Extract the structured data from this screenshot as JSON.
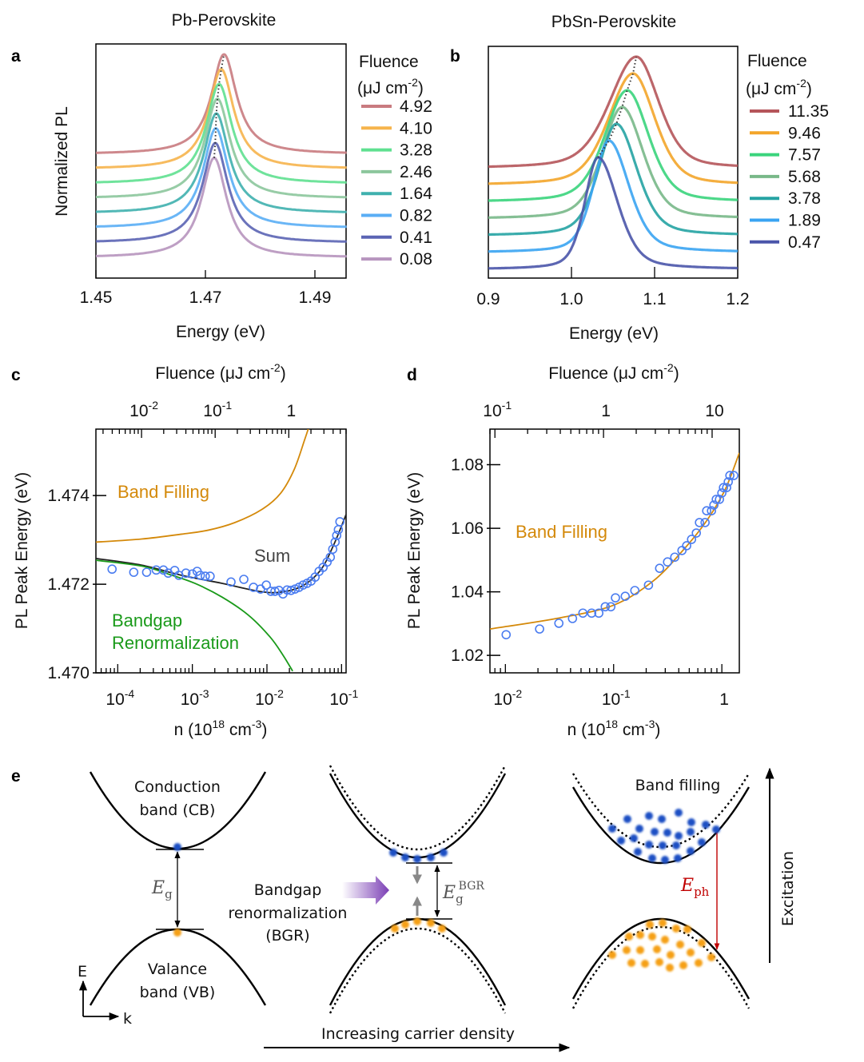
{
  "panel_labels": {
    "a": "a",
    "b": "b",
    "c": "c",
    "d": "d",
    "e": "e"
  },
  "chart_data": [
    {
      "panel": "a",
      "type": "line",
      "title": "Pb-Perovskite",
      "xlabel": "Energy (eV)",
      "ylabel": "Normalized PL",
      "xlim": [
        1.45,
        1.4958
      ],
      "xticks": [
        1.45,
        1.47,
        1.49
      ],
      "xtick_labels": [
        "1.45",
        "1.47",
        "1.49"
      ],
      "legend": {
        "title": "Fluence",
        "unit": "(μJ cm",
        "unit_exp": "-2",
        "unit_close": ")",
        "placement": "right"
      },
      "peak_guide": "dotted",
      "series": [
        {
          "name": "4.92",
          "peak_energy": 1.4734,
          "color": "#c97b80"
        },
        {
          "name": "4.10",
          "peak_energy": 1.4729,
          "color": "#f6b44c"
        },
        {
          "name": "3.28",
          "peak_energy": 1.4725,
          "color": "#5fe090"
        },
        {
          "name": "2.46",
          "peak_energy": 1.4722,
          "color": "#8cc69c"
        },
        {
          "name": "1.64",
          "peak_energy": 1.472,
          "color": "#3fb0ae"
        },
        {
          "name": "0.82",
          "peak_energy": 1.4719,
          "color": "#5aaef5"
        },
        {
          "name": "0.41",
          "peak_energy": 1.4718,
          "color": "#5b64b4"
        },
        {
          "name": "0.08",
          "peak_energy": 1.4716,
          "color": "#b795be"
        }
      ]
    },
    {
      "panel": "b",
      "type": "line",
      "title": "PbSn-Perovskite",
      "xlabel": "Energy (eV)",
      "xlim": [
        0.9,
        1.2
      ],
      "xticks": [
        0.9,
        1.0,
        1.1,
        1.2
      ],
      "xtick_labels": [
        "0.9",
        "1.0",
        "1.1",
        "1.2"
      ],
      "legend": {
        "title": "Fluence",
        "unit": "(μJ cm",
        "unit_exp": "-2",
        "unit_close": ")",
        "placement": "right"
      },
      "peak_guide": "dotted",
      "series": [
        {
          "name": "11.35",
          "peak_energy": 1.078,
          "color": "#b5555a"
        },
        {
          "name": "9.46",
          "peak_energy": 1.074,
          "color": "#f3a52a"
        },
        {
          "name": "7.57",
          "peak_energy": 1.067,
          "color": "#3ad47c"
        },
        {
          "name": "5.68",
          "peak_energy": 1.061,
          "color": "#78b888"
        },
        {
          "name": "3.78",
          "peak_energy": 1.054,
          "color": "#25a3a3"
        },
        {
          "name": "1.89",
          "peak_energy": 1.045,
          "color": "#3aa4f2"
        },
        {
          "name": "0.47",
          "peak_energy": 1.032,
          "color": "#4a55aa"
        }
      ]
    },
    {
      "panel": "c",
      "type": "scatter",
      "xscale": "log",
      "xlabel_parts": [
        "n (10",
        "18",
        " cm",
        "-3",
        ")"
      ],
      "ylabel": "PL Peak Energy (eV)",
      "xlim": [
        5.1e-05,
        0.115
      ],
      "ylim": [
        1.47,
        1.4755
      ],
      "xtick_labels": [
        {
          "base": "10",
          "exp": "-4",
          "value": 0.0001
        },
        {
          "base": "10",
          "exp": "-3",
          "value": 0.001
        },
        {
          "base": "10",
          "exp": "-2",
          "value": 0.01
        },
        {
          "base": "10",
          "exp": "-1",
          "value": 0.1
        }
      ],
      "yticks": [
        1.47,
        1.472,
        1.474
      ],
      "ytick_labels": [
        "1.470",
        "1.472",
        "1.474"
      ],
      "top_axis": {
        "label_parts": [
          "Fluence (μJ cm",
          "-2",
          ")"
        ],
        "scale": "log",
        "xlim": [
          0.0024,
          6.0
        ],
        "tick_labels": [
          {
            "base": "10",
            "exp": "-2",
            "value": 0.01
          },
          {
            "base": "10",
            "exp": "-1",
            "value": 0.1
          },
          {
            "base": "1",
            "exp": "",
            "value": 1
          }
        ]
      },
      "marker_color": "#4a7cf0",
      "points": {
        "n": [
          8.4e-05,
          0.000164,
          0.000244,
          0.000328,
          0.00041,
          0.000475,
          0.00058,
          0.00066,
          0.00082,
          0.001,
          0.00116,
          0.00128,
          0.00149,
          0.00173,
          0.0033,
          0.0049,
          0.0066,
          0.0082,
          0.0098,
          0.0113,
          0.0128,
          0.0145,
          0.0164,
          0.0186,
          0.021,
          0.0238,
          0.0269,
          0.0305,
          0.0345,
          0.039,
          0.0442,
          0.05,
          0.0566,
          0.064,
          0.0707,
          0.0762,
          0.082,
          0.0861,
          0.0906,
          0.095
        ],
        "E": [
          1.47234,
          1.47227,
          1.47227,
          1.47232,
          1.47232,
          1.47225,
          1.47231,
          1.4722,
          1.47225,
          1.47223,
          1.47229,
          1.4722,
          1.47218,
          1.47218,
          1.47205,
          1.47211,
          1.47193,
          1.47189,
          1.47198,
          1.47184,
          1.47184,
          1.47186,
          1.47178,
          1.47187,
          1.47186,
          1.47189,
          1.47193,
          1.47198,
          1.47202,
          1.47207,
          1.47216,
          1.47229,
          1.47238,
          1.4725,
          1.47261,
          1.47279,
          1.47295,
          1.4731,
          1.47323,
          1.47341
        ]
      },
      "series": [
        {
          "label": [
            "Band Filling"
          ],
          "color": "#d4890a",
          "n": [
            5.1e-05,
            0.00021,
            0.00072,
            0.00164,
            0.0037,
            0.0086,
            0.0152,
            0.0232,
            0.032,
            0.0362
          ],
          "E": [
            1.47295,
            1.47302,
            1.47313,
            1.47322,
            1.47339,
            1.47369,
            1.47405,
            1.47459,
            1.47526,
            1.47553
          ]
        },
        {
          "label": [
            "Sum"
          ],
          "color": "#222222",
          "n": [
            5.1e-05,
            0.00021,
            0.00072,
            0.0025,
            0.0078,
            0.0152,
            0.0297,
            0.0525,
            0.08,
            0.116
          ],
          "E": [
            1.47258,
            1.47243,
            1.4722,
            1.47202,
            1.47184,
            1.47182,
            1.47196,
            1.47232,
            1.47292,
            1.47359
          ]
        },
        {
          "label": [
            "Bandgap",
            "Renormalization"
          ],
          "color": "#1a9a1a",
          "n": [
            5.1e-05,
            0.00021,
            0.000475,
            0.00108,
            0.0025,
            0.00566,
            0.011,
            0.0164,
            0.0221
          ],
          "E": [
            1.47254,
            1.47241,
            1.47223,
            1.47202,
            1.47171,
            1.4713,
            1.47081,
            1.4704,
            1.47004
          ]
        }
      ]
    },
    {
      "panel": "d",
      "type": "scatter",
      "xscale": "log",
      "xlabel_parts": [
        "n (10",
        "18",
        " cm",
        "-3",
        ")"
      ],
      "ylabel": "PL Peak Energy (eV)",
      "xlim": [
        0.0072,
        1.45
      ],
      "ylim": [
        1.0145,
        1.0912
      ],
      "xtick_labels": [
        {
          "base": "10",
          "exp": "-2",
          "value": 0.01
        },
        {
          "base": "10",
          "exp": "-1",
          "value": 0.1
        },
        {
          "base": "1",
          "exp": "",
          "value": 1
        }
      ],
      "yticks": [
        1.02,
        1.04,
        1.06,
        1.08
      ],
      "ytick_labels": [
        "1.02",
        "1.04",
        "1.06",
        "1.08"
      ],
      "top_axis": {
        "label_parts": [
          "Fluence (μJ cm",
          "-2",
          ")"
        ],
        "scale": "log",
        "xlim": [
          0.09,
          17.8
        ],
        "tick_labels": [
          {
            "base": "10",
            "exp": "-1",
            "value": 0.1
          },
          {
            "base": "1",
            "exp": "",
            "value": 1
          },
          {
            "base": "10",
            "exp": "",
            "value": 10
          }
        ]
      },
      "marker_color": "#4a7cf0",
      "points": {
        "n": [
          0.01016,
          0.0207,
          0.0312,
          0.0417,
          0.052,
          0.0627,
          0.073,
          0.0837,
          0.0943,
          0.104,
          0.128,
          0.157,
          0.21,
          0.266,
          0.315,
          0.367,
          0.428,
          0.473,
          0.525,
          0.581,
          0.621,
          0.7,
          0.724,
          0.802,
          0.844,
          0.888,
          0.95,
          1.0,
          1.035,
          1.107,
          1.146,
          1.186,
          1.29
        ],
        "E": [
          1.0265,
          1.0283,
          1.0301,
          1.0316,
          1.0333,
          1.0333,
          1.0333,
          1.0353,
          1.0353,
          1.0381,
          1.0386,
          1.0404,
          1.0421,
          1.0474,
          1.0494,
          1.0509,
          1.053,
          1.0545,
          1.0565,
          1.0585,
          1.0618,
          1.0618,
          1.0655,
          1.0655,
          1.0673,
          1.0691,
          1.0691,
          1.0711,
          1.0728,
          1.0728,
          1.0746,
          1.0766,
          1.0766
        ]
      },
      "series": [
        {
          "label": [
            "Band Filling"
          ],
          "color": "#d4890a",
          "n": [
            0.0072,
            0.0318,
            0.1,
            0.232,
            0.428,
            0.711,
            1.07,
            1.45
          ],
          "E": [
            1.0283,
            1.0318,
            1.0358,
            1.0434,
            1.0527,
            1.062,
            1.0721,
            1.0837
          ]
        }
      ]
    }
  ],
  "diagram": {
    "cb_label": [
      "Conduction",
      "band (CB)"
    ],
    "vb_label": [
      "Valance",
      "band (VB)"
    ],
    "eg": {
      "base": "E",
      "sub": "g"
    },
    "eg_bgr": {
      "base": "E",
      "sub": "g",
      "sup": "BGR"
    },
    "eph": {
      "base": "E",
      "sub": "ph"
    },
    "bgr_label": [
      "Bandgap",
      "renormalization",
      "(BGR)"
    ],
    "band_filling": "Band filling",
    "excitation": "Excitation",
    "carrier_density": "Increasing carrier density",
    "axis_e": "E",
    "axis_k": "k",
    "colors": {
      "electron": "#1f4fc4",
      "hole": "#f5a015",
      "photon_arrow": "#c00000",
      "bgr_arrow": "#7b3fb5",
      "shift_arrow": "#888888"
    }
  }
}
